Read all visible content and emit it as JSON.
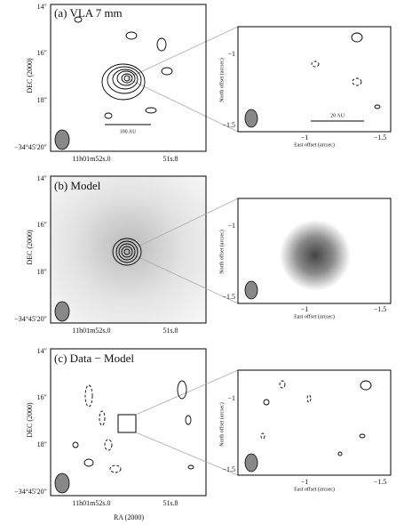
{
  "panels": [
    {
      "label": "(a) VLA 7 mm",
      "scale_bar": "100 AU",
      "inset_scale_bar": "20 AU"
    },
    {
      "label": "(b) Model"
    },
    {
      "label": "(c) Data − Model",
      "x_axis_title": "RA (2000)"
    }
  ],
  "left_axes": {
    "y_title": "DEC (2000)",
    "y_ticks": [
      "14″",
      "16″",
      "18″",
      "−34°45′20″"
    ],
    "x_ticks": [
      "11h01m52s.0",
      "51s.8"
    ]
  },
  "right_axes": {
    "y_title": "North offset (arcsec)",
    "x_title": "East offset (arcsec)",
    "y_ticks": [
      "−1",
      "−1.5"
    ],
    "x_ticks": [
      "−1",
      "−1.5"
    ]
  }
}
